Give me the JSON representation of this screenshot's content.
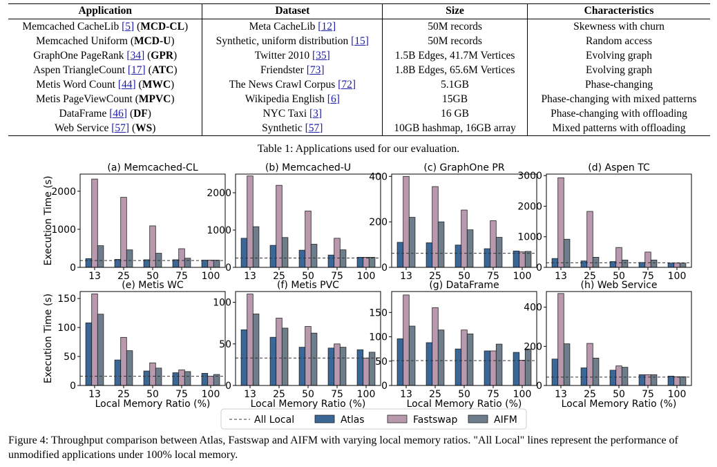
{
  "table": {
    "headers": [
      "Application",
      "Dataset",
      "Size",
      "Characteristics"
    ],
    "rows": [
      {
        "app": "Memcached CacheLib ",
        "app_cite": "[5]",
        "abbr": "MCD-CL",
        "dataset": "Meta CacheLib ",
        "dataset_cite": "[12]",
        "size": "50M records",
        "characteristics": "Skewness with churn"
      },
      {
        "app": "Memcached Uniform ",
        "app_cite": "",
        "abbr": "MCD-U",
        "dataset": "Synthetic, uniform distribution ",
        "dataset_cite": "[15]",
        "size": "50M records",
        "characteristics": "Random access"
      },
      {
        "app": "GraphOne PageRank ",
        "app_cite": "[34]",
        "abbr": "GPR",
        "dataset": "Twitter 2010 ",
        "dataset_cite": "[35]",
        "size": "1.5B Edges, 41.7M Vertices",
        "characteristics": "Evolving graph"
      },
      {
        "app": "Aspen TriangleCount ",
        "app_cite": "[17]",
        "abbr": "ATC",
        "dataset": "Friendster ",
        "dataset_cite": "[73]",
        "size": "1.8B Edges, 65.6M Vertices",
        "characteristics": "Evolving graph"
      },
      {
        "app": "Metis Word Count ",
        "app_cite": "[44]",
        "abbr": "MWC",
        "dataset": "The News Crawl Corpus ",
        "dataset_cite": "[72]",
        "size": "5.1GB",
        "characteristics": "Phase-changing"
      },
      {
        "app": "Metis PageViewCount ",
        "app_cite": "",
        "abbr": "MPVC",
        "dataset": "Wikipedia English ",
        "dataset_cite": "[6]",
        "size": "15GB",
        "characteristics": "Phase-changing with mixed patterns"
      },
      {
        "app": "DataFrame ",
        "app_cite": "[46]",
        "abbr": "DF",
        "dataset": "NYC Taxi ",
        "dataset_cite": "[3]",
        "size": "16 GB",
        "characteristics": "Phase-changing with offloading"
      },
      {
        "app": "Web Service ",
        "app_cite": "[57]",
        "abbr": "WS",
        "dataset": "Synthetic ",
        "dataset_cite": "[57]",
        "size": "10GB hashmap, 16GB array",
        "characteristics": "Mixed patterns with offloading"
      }
    ],
    "caption": "Table 1: Applications used for our evaluation."
  },
  "figure_caption": "Figure 4: Throughput comparison between Atlas, Fastswap and AIFM with varying local memory ratios. \"All Local\" lines represent the performance of unmodified applications under 100% local memory.",
  "chart_data": {
    "type": "bar",
    "categories": [
      "13",
      "25",
      "50",
      "75",
      "100"
    ],
    "ylabel": "Execution Time (s)",
    "xlabel": "Local Memory Ratio (%)",
    "legend": {
      "placement": "bottom",
      "entries": [
        "All Local",
        "Atlas",
        "Fastswap",
        "AIFM"
      ]
    },
    "colors": {
      "Atlas": "#3b6797",
      "Fastswap": "#b899ad",
      "AIFM": "#6e7d8b",
      "AllLocal": "#333333"
    },
    "panels": [
      {
        "title": "(a) Memcached-CL",
        "ylim": [
          0,
          2450
        ],
        "yticks": [
          0,
          1000,
          2000
        ],
        "all_local": 180,
        "series": [
          {
            "name": "Atlas",
            "values": [
              230,
              210,
              200,
              200,
              190
            ]
          },
          {
            "name": "Fastswap",
            "values": [
              2320,
              1840,
              1090,
              490,
              190
            ]
          },
          {
            "name": "AIFM",
            "values": [
              570,
              460,
              370,
              240,
              190
            ]
          }
        ]
      },
      {
        "title": "(b) Memcached-U",
        "ylim": [
          0,
          2500
        ],
        "yticks": [
          0,
          1000,
          2000
        ],
        "all_local": 250,
        "series": [
          {
            "name": "Atlas",
            "values": [
              780,
              590,
              460,
              330,
              270
            ]
          },
          {
            "name": "Fastswap",
            "values": [
              2450,
              2200,
              1510,
              780,
              270
            ]
          },
          {
            "name": "AIFM",
            "values": [
              1090,
              800,
              620,
              470,
              270
            ]
          }
        ]
      },
      {
        "title": "(c) GraphOne PR",
        "ylim": [
          0,
          410
        ],
        "yticks": [
          0,
          200,
          400
        ],
        "all_local": 62,
        "series": [
          {
            "name": "Atlas",
            "values": [
              110,
              108,
              98,
              82,
              72
            ]
          },
          {
            "name": "Fastswap",
            "values": [
              400,
              355,
              252,
              205,
              68
            ]
          },
          {
            "name": "AIFM",
            "values": [
              220,
              200,
              165,
              132,
              70
            ]
          }
        ]
      },
      {
        "title": "(d) Aspen TC",
        "ylim": [
          0,
          3050
        ],
        "yticks": [
          0,
          1000,
          2000,
          3000
        ],
        "all_local": 150,
        "series": [
          {
            "name": "Atlas",
            "values": [
              290,
              210,
              190,
              160,
              140
            ]
          },
          {
            "name": "Fastswap",
            "values": [
              2930,
              1830,
              650,
              500,
              140
            ]
          },
          {
            "name": "AIFM",
            "values": [
              920,
              330,
              240,
              240,
              140
            ]
          }
        ]
      },
      {
        "title": "(e) Metis WC",
        "ylim": [
          0,
          162
        ],
        "yticks": [
          0,
          50,
          100,
          150
        ],
        "all_local": 16,
        "series": [
          {
            "name": "Atlas",
            "values": [
              108,
              44,
              25,
              22,
              21
            ]
          },
          {
            "name": "Fastswap",
            "values": [
              158,
              83,
              39,
              27,
              16
            ]
          },
          {
            "name": "AIFM",
            "values": [
              123,
              60,
              30,
              24,
              19
            ]
          }
        ]
      },
      {
        "title": "(f) Metis PVC",
        "ylim": [
          0,
          113
        ],
        "yticks": [
          0,
          50,
          100
        ],
        "all_local": 33,
        "series": [
          {
            "name": "Atlas",
            "values": [
              67,
              58,
              46,
              45,
              43
            ]
          },
          {
            "name": "Fastswap",
            "values": [
              110,
              81,
              71,
              50,
              33
            ]
          },
          {
            "name": "AIFM",
            "values": [
              86,
              69,
              63,
              46,
              40
            ]
          }
        ]
      },
      {
        "title": "(g) DataFrame",
        "ylim": [
          0,
          193
        ],
        "yticks": [
          0,
          50,
          100,
          150
        ],
        "all_local": 51,
        "series": [
          {
            "name": "Atlas",
            "values": [
              96,
              88,
              75,
              71,
              68
            ]
          },
          {
            "name": "Fastswap",
            "values": [
              186,
              160,
              114,
              71,
              52
            ]
          },
          {
            "name": "AIFM",
            "values": [
              122,
              114,
              106,
              85,
              75
            ]
          }
        ]
      },
      {
        "title": "(h) Web Service",
        "ylim": [
          0,
          480
        ],
        "yticks": [
          0,
          200,
          400
        ],
        "all_local": 43,
        "series": [
          {
            "name": "Atlas",
            "values": [
              135,
              90,
              78,
              55,
              48
            ]
          },
          {
            "name": "Fastswap",
            "values": [
              470,
              215,
              100,
              55,
              45
            ]
          },
          {
            "name": "AIFM",
            "values": [
              213,
              140,
              93,
              55,
              45
            ]
          }
        ]
      }
    ]
  }
}
